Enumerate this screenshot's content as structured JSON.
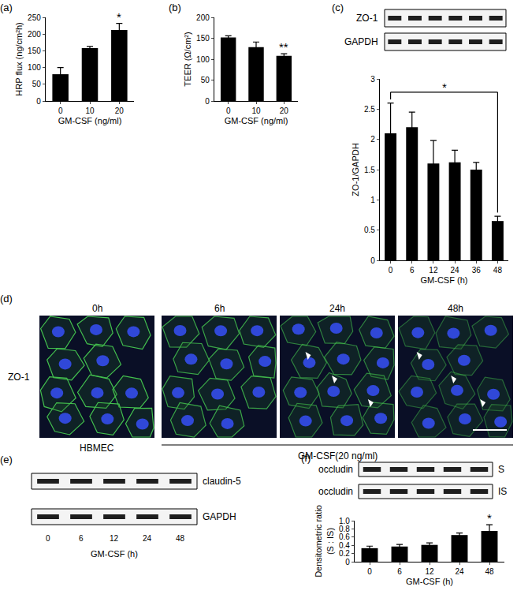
{
  "chart_data": [
    {
      "panel": "(a)",
      "type": "bar",
      "x_label": "GM-CSF (ng/ml)",
      "y_label": "HRP flux (ng/cm²h)",
      "categories": [
        "0",
        "10",
        "20"
      ],
      "values": [
        80,
        158,
        212
      ],
      "errors": [
        20,
        5,
        20
      ],
      "color": "#000000",
      "ylim": [
        0,
        250
      ],
      "yticks": [
        0,
        50,
        100,
        150,
        200,
        250
      ],
      "annotations": [
        {
          "category": "20",
          "text": "*"
        }
      ]
    },
    {
      "panel": "(b)",
      "type": "bar",
      "x_label": "GM-CSF (ng/ml)",
      "y_label": "TEER (Ω/cm²)",
      "categories": [
        "0",
        "10",
        "20"
      ],
      "values": [
        152,
        129,
        108
      ],
      "errors": [
        4,
        12,
        5
      ],
      "color": "#000000",
      "ylim": [
        0,
        200
      ],
      "yticks": [
        0,
        50,
        100,
        150,
        200
      ],
      "annotations": [
        {
          "category": "20",
          "text": "**"
        }
      ]
    },
    {
      "panel": "(c)",
      "type": "bar",
      "x_label": "GM-CSF (h)",
      "y_label": "ZO-1/GAPDH",
      "categories": [
        "0",
        "6",
        "12",
        "24",
        "36",
        "48"
      ],
      "values": [
        2.1,
        2.2,
        1.6,
        1.62,
        1.5,
        0.65
      ],
      "errors": [
        0.5,
        0.25,
        0.38,
        0.2,
        0.12,
        0.08
      ],
      "color": "#000000",
      "ylim": [
        0,
        3
      ],
      "yticks": [
        0,
        0.5,
        1,
        1.5,
        2,
        2.5,
        3
      ],
      "bracket": {
        "from": "0",
        "to": "48",
        "text": "*"
      },
      "blot": {
        "rows": [
          "ZO-1",
          "GAPDH"
        ]
      }
    },
    {
      "panel": "(d)",
      "type": "image",
      "channel": "ZO-1",
      "columns": [
        "0h",
        "6h",
        "24h",
        "48h"
      ],
      "control_label": "HBMEC",
      "treatment_label": "GM-CSF(20 ng/ml)"
    },
    {
      "panel": "(e)",
      "type": "blot",
      "rows": [
        "claudin-5",
        "GAPDH"
      ],
      "lanes": [
        "0",
        "6",
        "12",
        "24",
        "48"
      ],
      "x_label": "GM-CSF (h)"
    },
    {
      "panel": "(f)",
      "type": "bar",
      "x_label": "GM-CSF (h)",
      "y_label": "Densitometric ratio\n(S : IS)",
      "categories": [
        "0",
        "6",
        "12",
        "24",
        "48"
      ],
      "values": [
        0.33,
        0.37,
        0.41,
        0.65,
        0.75
      ],
      "errors": [
        0.05,
        0.05,
        0.05,
        0.05,
        0.15
      ],
      "color": "#000000",
      "ylim": [
        0,
        1
      ],
      "yticks": [
        0,
        0.2,
        0.4,
        0.6,
        0.8,
        {
          "value": 1,
          "label": "1.0"
        }
      ],
      "annotations": [
        {
          "category": "48",
          "text": "*"
        }
      ],
      "blot": {
        "rows": [
          {
            "protein": "occludin",
            "fraction": "S"
          },
          {
            "protein": "occludin",
            "fraction": "IS"
          }
        ]
      }
    }
  ]
}
